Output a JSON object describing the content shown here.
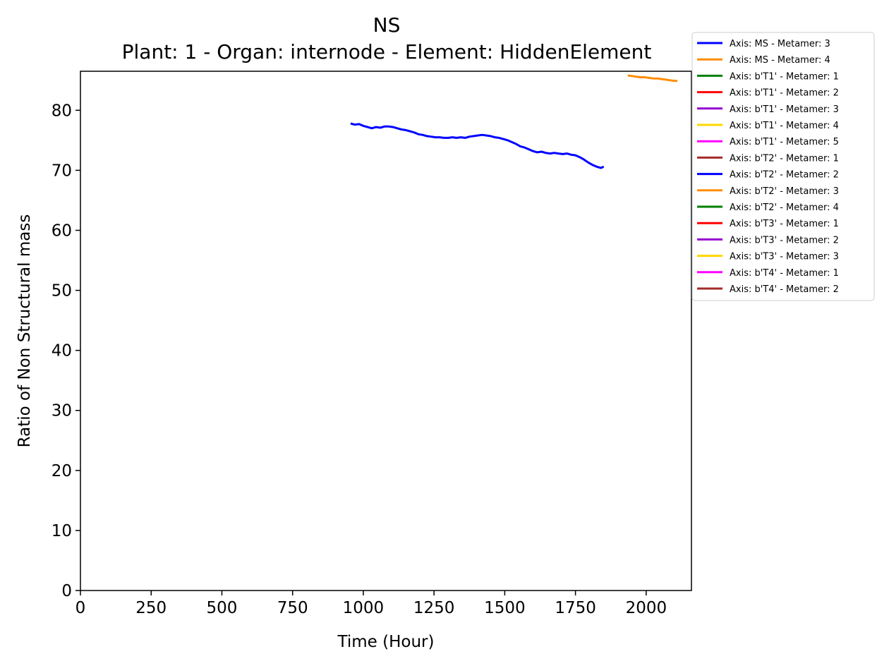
{
  "chart_data": {
    "type": "line",
    "title": "NS",
    "subtitle": "Plant: 1 - Organ: internode - Element: HiddenElement",
    "xlabel": "Time (Hour)",
    "ylabel": "Ratio of Non Structural mass",
    "xlim": [
      0,
      2160
    ],
    "ylim": [
      0,
      86.5
    ],
    "xticks": [
      0,
      250,
      500,
      750,
      1000,
      1250,
      1500,
      1750,
      2000
    ],
    "yticks": [
      0,
      10,
      20,
      30,
      40,
      50,
      60,
      70,
      80
    ],
    "grid": false,
    "legend_position": "outside-top-right",
    "series": [
      {
        "name": "Axis: MS - Metamer: 3",
        "color": "#0000ff",
        "x": [
          955,
          970,
          985,
          1000,
          1015,
          1030,
          1045,
          1060,
          1075,
          1090,
          1105,
          1120,
          1135,
          1150,
          1165,
          1180,
          1195,
          1210,
          1225,
          1240,
          1255,
          1270,
          1285,
          1300,
          1315,
          1330,
          1345,
          1360,
          1375,
          1390,
          1405,
          1420,
          1435,
          1450,
          1465,
          1480,
          1495,
          1510,
          1525,
          1540,
          1555,
          1570,
          1585,
          1600,
          1615,
          1630,
          1645,
          1660,
          1675,
          1690,
          1705,
          1720,
          1735,
          1750,
          1765,
          1780,
          1795,
          1810,
          1825,
          1840,
          1850
        ],
        "values": [
          77.8,
          77.6,
          77.7,
          77.4,
          77.2,
          77.0,
          77.2,
          77.1,
          77.3,
          77.3,
          77.2,
          77.0,
          76.8,
          76.7,
          76.5,
          76.3,
          76.0,
          75.9,
          75.7,
          75.6,
          75.5,
          75.5,
          75.4,
          75.4,
          75.5,
          75.4,
          75.5,
          75.4,
          75.6,
          75.7,
          75.8,
          75.9,
          75.8,
          75.7,
          75.5,
          75.4,
          75.2,
          75.0,
          74.7,
          74.4,
          74.0,
          73.8,
          73.5,
          73.2,
          73.0,
          73.1,
          72.9,
          72.8,
          72.9,
          72.8,
          72.7,
          72.8,
          72.6,
          72.5,
          72.2,
          71.8,
          71.3,
          70.9,
          70.6,
          70.4,
          70.6
        ]
      },
      {
        "name": "Axis: MS - Metamer: 4",
        "color": "#ff8c00",
        "x": [
          1935,
          1950,
          1965,
          1980,
          1995,
          2010,
          2025,
          2040,
          2055,
          2070,
          2085,
          2100,
          2110
        ],
        "values": [
          85.8,
          85.7,
          85.6,
          85.5,
          85.5,
          85.4,
          85.3,
          85.3,
          85.2,
          85.1,
          85.0,
          84.9,
          84.9
        ]
      },
      {
        "name": "Axis: b'T1' - Metamer: 1",
        "color": "#008000",
        "x": [],
        "values": []
      },
      {
        "name": "Axis: b'T1' - Metamer: 2",
        "color": "#ff0000",
        "x": [],
        "values": []
      },
      {
        "name": "Axis: b'T1' - Metamer: 3",
        "color": "#9400d3",
        "x": [],
        "values": []
      },
      {
        "name": "Axis: b'T1' - Metamer: 4",
        "color": "#ffd700",
        "x": [],
        "values": []
      },
      {
        "name": "Axis: b'T1' - Metamer: 5",
        "color": "#ff00ff",
        "x": [],
        "values": []
      },
      {
        "name": "Axis: b'T2' - Metamer: 1",
        "color": "#a52a2a",
        "x": [],
        "values": []
      },
      {
        "name": "Axis: b'T2' - Metamer: 2",
        "color": "#0000ff",
        "x": [],
        "values": []
      },
      {
        "name": "Axis: b'T2' - Metamer: 3",
        "color": "#ff8c00",
        "x": [],
        "values": []
      },
      {
        "name": "Axis: b'T2' - Metamer: 4",
        "color": "#008000",
        "x": [],
        "values": []
      },
      {
        "name": "Axis: b'T3' - Metamer: 1",
        "color": "#ff0000",
        "x": [],
        "values": []
      },
      {
        "name": "Axis: b'T3' - Metamer: 2",
        "color": "#9400d3",
        "x": [],
        "values": []
      },
      {
        "name": "Axis: b'T3' - Metamer: 3",
        "color": "#ffd700",
        "x": [],
        "values": []
      },
      {
        "name": "Axis: b'T4' - Metamer: 1",
        "color": "#ff00ff",
        "x": [],
        "values": []
      },
      {
        "name": "Axis: b'T4' - Metamer: 2",
        "color": "#a52a2a",
        "x": [],
        "values": []
      }
    ]
  }
}
